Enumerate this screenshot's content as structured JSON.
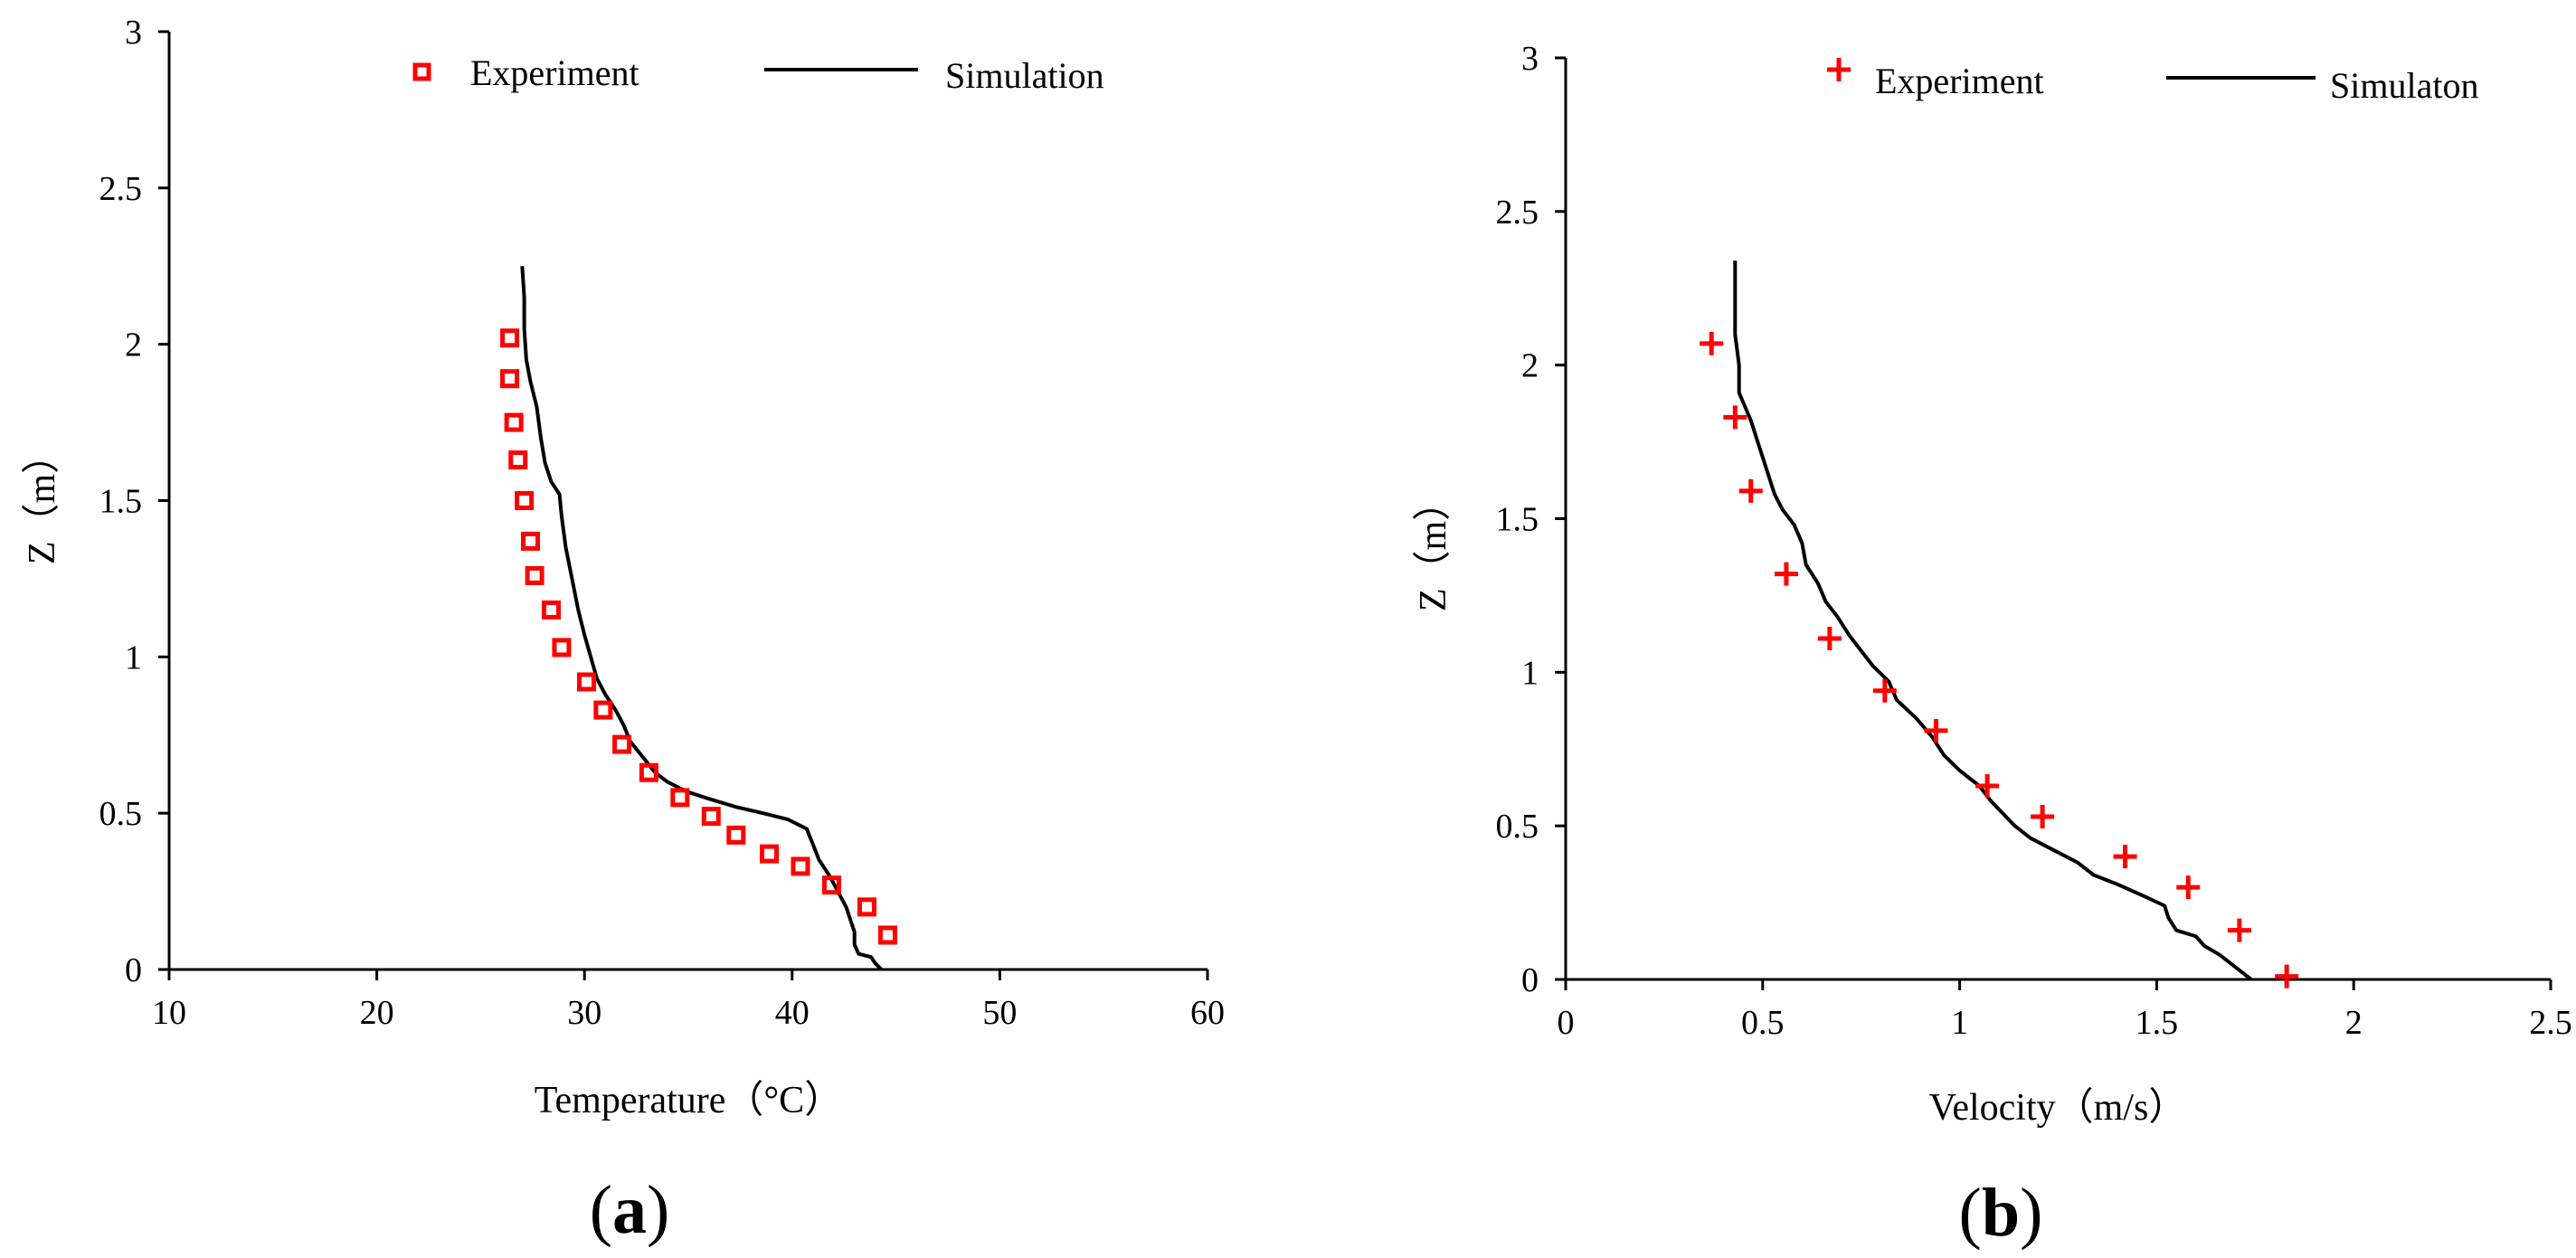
{
  "colors": {
    "experiment": "#ff0000",
    "simulation": "#000000",
    "axis": "#000000"
  },
  "chart_data": [
    {
      "type": "scatter",
      "panel_label": {
        "open": "(",
        "letter": "a",
        "close": ")"
      },
      "xlabel": "Temperature（°C）",
      "ylabel": "Z（m）",
      "xlim": [
        10,
        60
      ],
      "ylim": [
        0,
        3
      ],
      "x_ticks": [
        "10",
        "20",
        "30",
        "40",
        "50",
        "60"
      ],
      "y_ticks": [
        "0",
        "0.5",
        "1",
        "1.5",
        "2",
        "2.5",
        "3"
      ],
      "grid": false,
      "legend_position": "top",
      "legend": [
        {
          "label": "Experiment",
          "marker": "hollow-square",
          "color": "#ff0000"
        },
        {
          "label": "Simulation",
          "marker": "line",
          "color": "#000000"
        }
      ],
      "series": [
        {
          "name": "Experiment",
          "marker": "hollow-square",
          "points": [
            {
              "x": 26.4,
              "y": 2.02
            },
            {
              "x": 26.4,
              "y": 1.89
            },
            {
              "x": 26.6,
              "y": 1.75
            },
            {
              "x": 26.8,
              "y": 1.63
            },
            {
              "x": 27.1,
              "y": 1.5
            },
            {
              "x": 27.4,
              "y": 1.37
            },
            {
              "x": 27.6,
              "y": 1.26
            },
            {
              "x": 28.4,
              "y": 1.15
            },
            {
              "x": 28.9,
              "y": 1.03
            },
            {
              "x": 30.1,
              "y": 0.92
            },
            {
              "x": 30.9,
              "y": 0.83
            },
            {
              "x": 31.8,
              "y": 0.72
            },
            {
              "x": 33.1,
              "y": 0.63
            },
            {
              "x": 34.6,
              "y": 0.55
            },
            {
              "x": 36.1,
              "y": 0.49
            },
            {
              "x": 37.3,
              "y": 0.43
            },
            {
              "x": 38.9,
              "y": 0.37
            },
            {
              "x": 40.4,
              "y": 0.33
            },
            {
              "x": 41.9,
              "y": 0.27
            },
            {
              "x": 43.6,
              "y": 0.2
            },
            {
              "x": 44.6,
              "y": 0.11
            }
          ]
        },
        {
          "name": "Simulation",
          "marker": "line",
          "points": [
            {
              "x": 44.3,
              "y": 0.0
            },
            {
              "x": 44.0,
              "y": 0.02
            },
            {
              "x": 43.8,
              "y": 0.04
            },
            {
              "x": 43.2,
              "y": 0.05
            },
            {
              "x": 43.0,
              "y": 0.08
            },
            {
              "x": 43.0,
              "y": 0.12
            },
            {
              "x": 42.6,
              "y": 0.2
            },
            {
              "x": 42.2,
              "y": 0.25
            },
            {
              "x": 41.8,
              "y": 0.3
            },
            {
              "x": 41.3,
              "y": 0.35
            },
            {
              "x": 41.0,
              "y": 0.4
            },
            {
              "x": 40.7,
              "y": 0.45
            },
            {
              "x": 39.8,
              "y": 0.48
            },
            {
              "x": 38.6,
              "y": 0.5
            },
            {
              "x": 37.3,
              "y": 0.52
            },
            {
              "x": 35.8,
              "y": 0.55
            },
            {
              "x": 34.9,
              "y": 0.57
            },
            {
              "x": 34.0,
              "y": 0.6
            },
            {
              "x": 33.4,
              "y": 0.63
            },
            {
              "x": 32.8,
              "y": 0.68
            },
            {
              "x": 32.2,
              "y": 0.73
            },
            {
              "x": 31.9,
              "y": 0.78
            },
            {
              "x": 31.5,
              "y": 0.83
            },
            {
              "x": 31.0,
              "y": 0.88
            },
            {
              "x": 30.6,
              "y": 0.93
            },
            {
              "x": 30.3,
              "y": 1.0
            },
            {
              "x": 30.0,
              "y": 1.07
            },
            {
              "x": 29.7,
              "y": 1.15
            },
            {
              "x": 29.4,
              "y": 1.25
            },
            {
              "x": 29.1,
              "y": 1.35
            },
            {
              "x": 28.9,
              "y": 1.45
            },
            {
              "x": 28.8,
              "y": 1.52
            },
            {
              "x": 28.4,
              "y": 1.56
            },
            {
              "x": 28.1,
              "y": 1.62
            },
            {
              "x": 27.9,
              "y": 1.7
            },
            {
              "x": 27.7,
              "y": 1.8
            },
            {
              "x": 27.4,
              "y": 1.88
            },
            {
              "x": 27.2,
              "y": 1.95
            },
            {
              "x": 27.1,
              "y": 2.05
            },
            {
              "x": 27.1,
              "y": 2.15
            },
            {
              "x": 27.0,
              "y": 2.25
            }
          ]
        }
      ]
    },
    {
      "type": "scatter",
      "panel_label": {
        "open": "(",
        "letter": "b",
        "close": ")"
      },
      "xlabel": "Velocity（m/s）",
      "ylabel": "Z（m）",
      "xlim": [
        0,
        2.5
      ],
      "ylim": [
        0,
        3
      ],
      "x_ticks": [
        "0",
        "0.5",
        "1",
        "1.5",
        "2",
        "2.5"
      ],
      "y_ticks": [
        "0",
        "0.5",
        "1",
        "1.5",
        "2",
        "2.5",
        "3"
      ],
      "grid": false,
      "legend_position": "top",
      "legend": [
        {
          "label": "Experiment",
          "marker": "plus",
          "color": "#ff0000"
        },
        {
          "label": "Simulaton",
          "marker": "line",
          "color": "#000000"
        }
      ],
      "series": [
        {
          "name": "Experiment",
          "marker": "plus",
          "points": [
            {
              "x": 0.37,
              "y": 2.07
            },
            {
              "x": 0.43,
              "y": 1.83
            },
            {
              "x": 0.47,
              "y": 1.59
            },
            {
              "x": 0.56,
              "y": 1.32
            },
            {
              "x": 0.67,
              "y": 1.11
            },
            {
              "x": 0.81,
              "y": 0.94
            },
            {
              "x": 0.94,
              "y": 0.81
            },
            {
              "x": 1.07,
              "y": 0.63
            },
            {
              "x": 1.21,
              "y": 0.53
            },
            {
              "x": 1.42,
              "y": 0.4
            },
            {
              "x": 1.58,
              "y": 0.3
            },
            {
              "x": 1.71,
              "y": 0.16
            },
            {
              "x": 1.83,
              "y": 0.01
            }
          ]
        },
        {
          "name": "Simulaton",
          "marker": "line",
          "points": [
            {
              "x": 1.74,
              "y": 0.0
            },
            {
              "x": 1.7,
              "y": 0.04
            },
            {
              "x": 1.66,
              "y": 0.08
            },
            {
              "x": 1.62,
              "y": 0.11
            },
            {
              "x": 1.6,
              "y": 0.14
            },
            {
              "x": 1.55,
              "y": 0.16
            },
            {
              "x": 1.53,
              "y": 0.2
            },
            {
              "x": 1.52,
              "y": 0.24
            },
            {
              "x": 1.47,
              "y": 0.27
            },
            {
              "x": 1.4,
              "y": 0.31
            },
            {
              "x": 1.34,
              "y": 0.34
            },
            {
              "x": 1.3,
              "y": 0.38
            },
            {
              "x": 1.24,
              "y": 0.42
            },
            {
              "x": 1.18,
              "y": 0.46
            },
            {
              "x": 1.14,
              "y": 0.5
            },
            {
              "x": 1.11,
              "y": 0.54
            },
            {
              "x": 1.08,
              "y": 0.58
            },
            {
              "x": 1.05,
              "y": 0.63
            },
            {
              "x": 1.0,
              "y": 0.68
            },
            {
              "x": 0.96,
              "y": 0.73
            },
            {
              "x": 0.93,
              "y": 0.79
            },
            {
              "x": 0.89,
              "y": 0.85
            },
            {
              "x": 0.84,
              "y": 0.91
            },
            {
              "x": 0.82,
              "y": 0.97
            },
            {
              "x": 0.78,
              "y": 1.02
            },
            {
              "x": 0.75,
              "y": 1.07
            },
            {
              "x": 0.72,
              "y": 1.12
            },
            {
              "x": 0.69,
              "y": 1.18
            },
            {
              "x": 0.66,
              "y": 1.23
            },
            {
              "x": 0.64,
              "y": 1.29
            },
            {
              "x": 0.61,
              "y": 1.35
            },
            {
              "x": 0.6,
              "y": 1.42
            },
            {
              "x": 0.58,
              "y": 1.48
            },
            {
              "x": 0.55,
              "y": 1.53
            },
            {
              "x": 0.53,
              "y": 1.58
            },
            {
              "x": 0.51,
              "y": 1.66
            },
            {
              "x": 0.49,
              "y": 1.74
            },
            {
              "x": 0.47,
              "y": 1.82
            },
            {
              "x": 0.45,
              "y": 1.88
            },
            {
              "x": 0.44,
              "y": 1.91
            },
            {
              "x": 0.44,
              "y": 2.0
            },
            {
              "x": 0.43,
              "y": 2.1
            },
            {
              "x": 0.43,
              "y": 2.22
            },
            {
              "x": 0.43,
              "y": 2.34
            }
          ]
        }
      ]
    }
  ]
}
